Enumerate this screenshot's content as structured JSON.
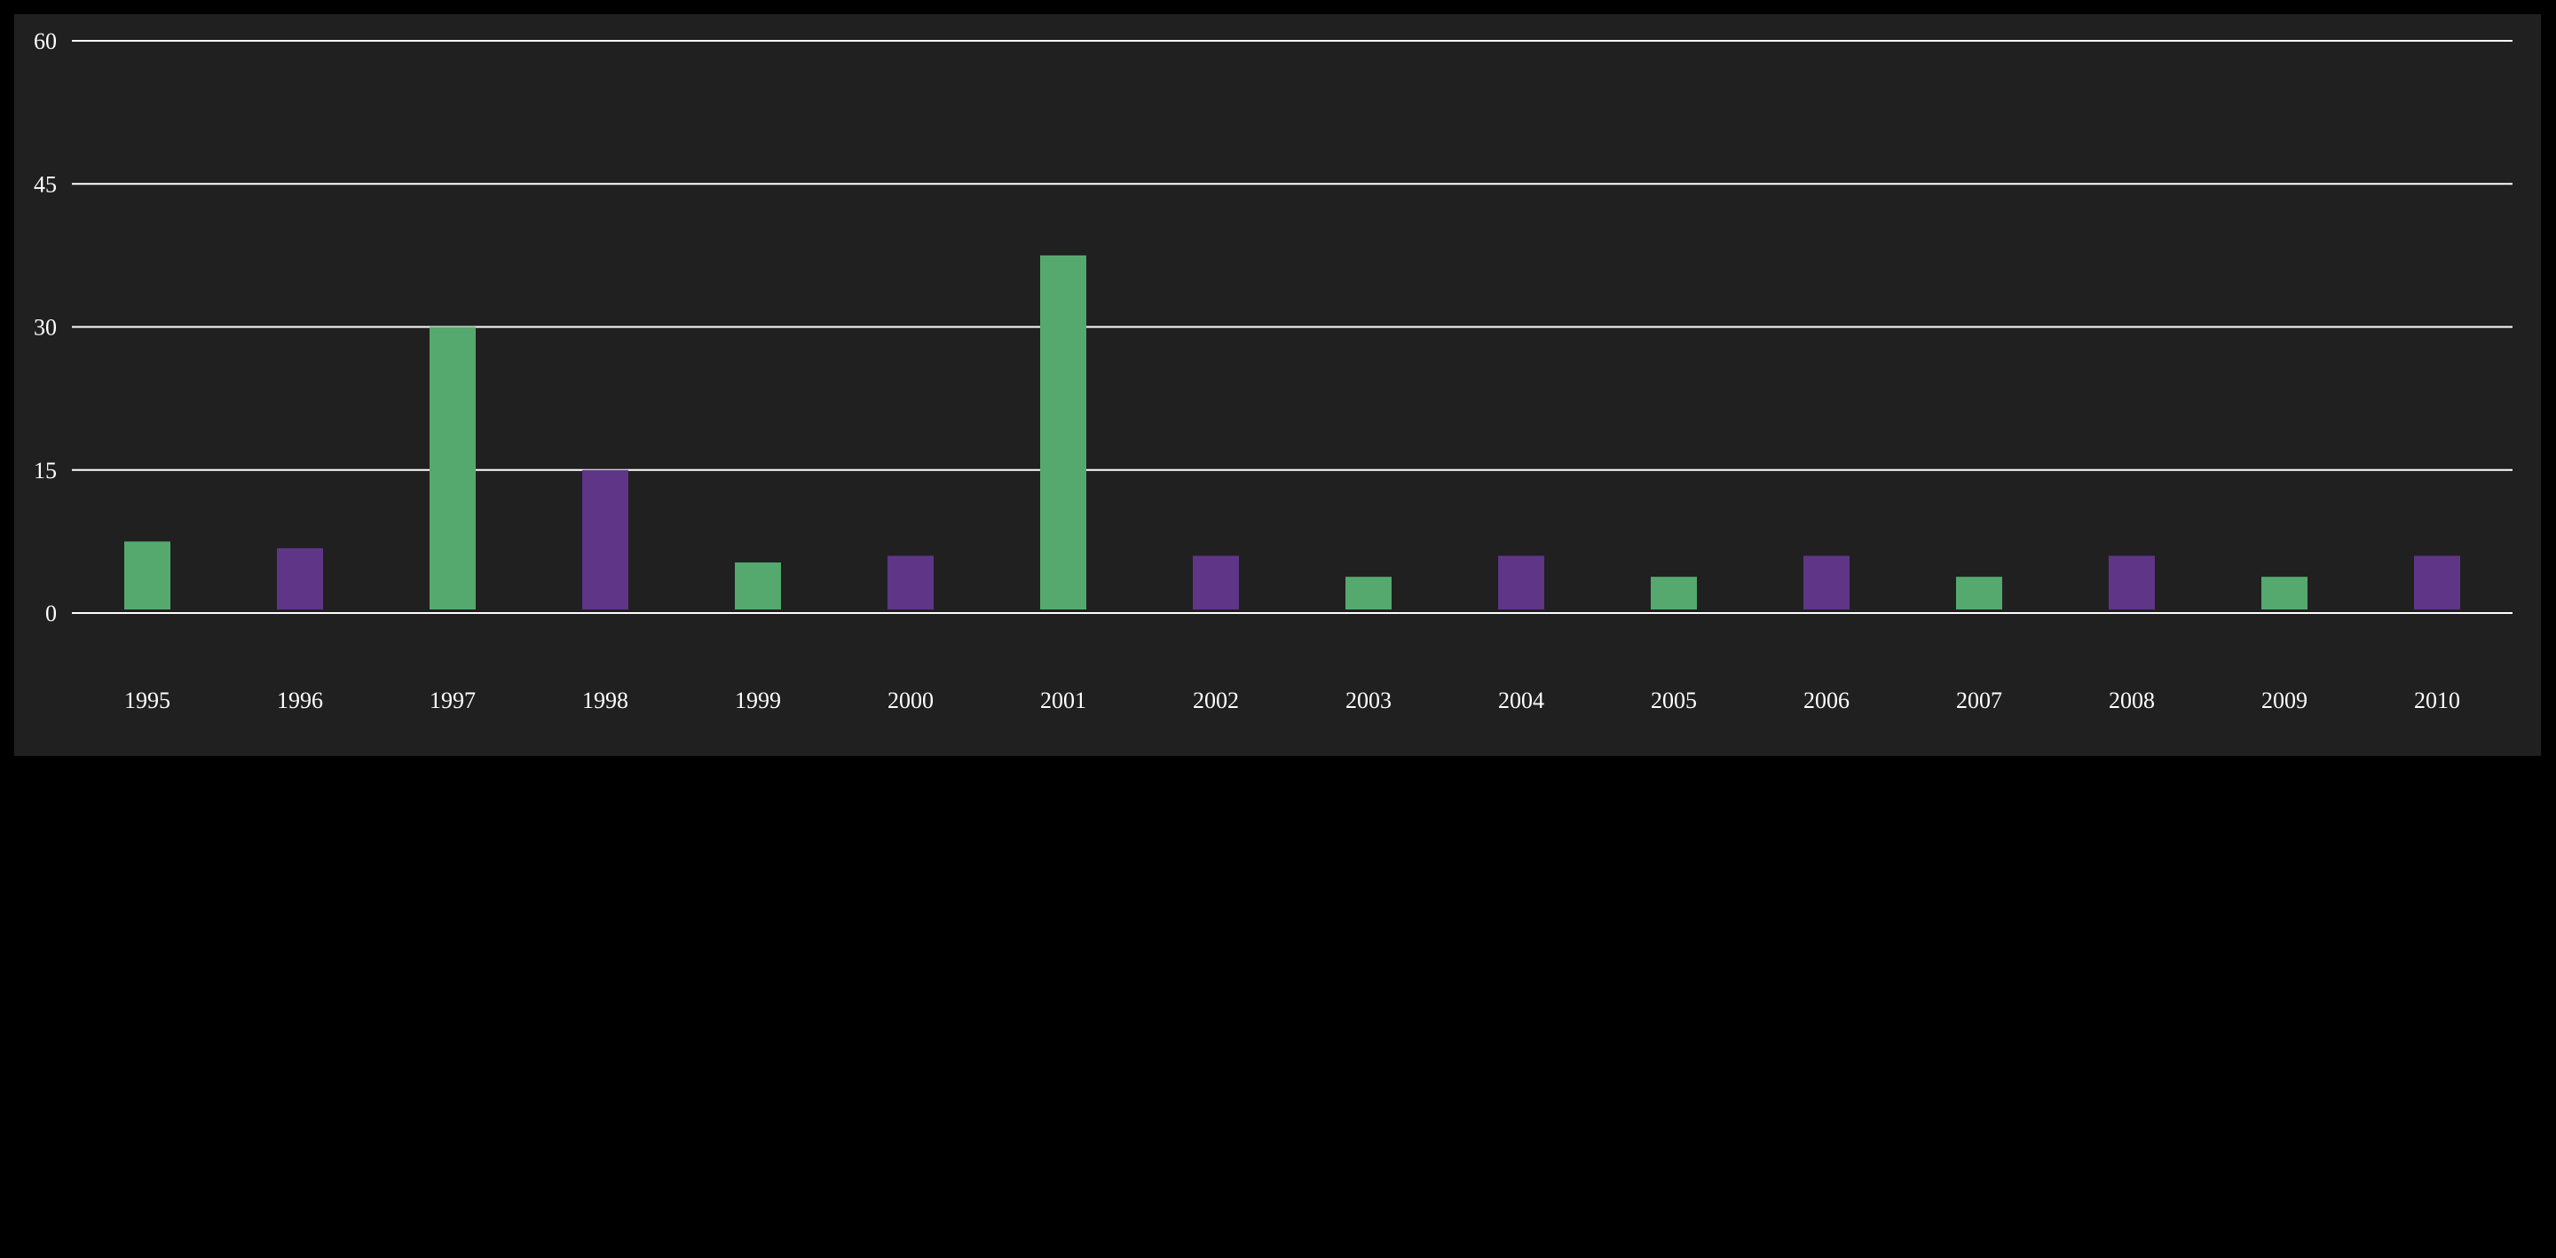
{
  "chart_data": {
    "type": "bar",
    "categories": [
      "1995",
      "1996",
      "1997",
      "1998",
      "1999",
      "2000",
      "2001",
      "2002",
      "2003",
      "2004",
      "2005",
      "2006",
      "2007",
      "2008",
      "2009",
      "2010"
    ],
    "values": [
      7.5,
      6.8,
      30,
      15,
      5.3,
      6,
      37.5,
      6,
      3.8,
      6,
      3.8,
      6,
      3.8,
      6,
      3.8,
      6
    ],
    "bar_colors": [
      "#55a96e",
      "#5f3588",
      "#55a96e",
      "#5f3588",
      "#55a96e",
      "#5f3588",
      "#55a96e",
      "#5f3588",
      "#55a96e",
      "#5f3588",
      "#55a96e",
      "#5f3588",
      "#55a96e",
      "#5f3588",
      "#55a96e",
      "#5f3588"
    ],
    "yticks": [
      "0",
      "15",
      "30",
      "45",
      "60"
    ],
    "ylim": [
      0,
      60
    ],
    "grid": true,
    "title": "",
    "xlabel": "",
    "ylabel": ""
  },
  "colors": {
    "page_background": "#000000",
    "chart_background": "#202020",
    "gridline": "#ffffff",
    "text": "#ffffff"
  }
}
